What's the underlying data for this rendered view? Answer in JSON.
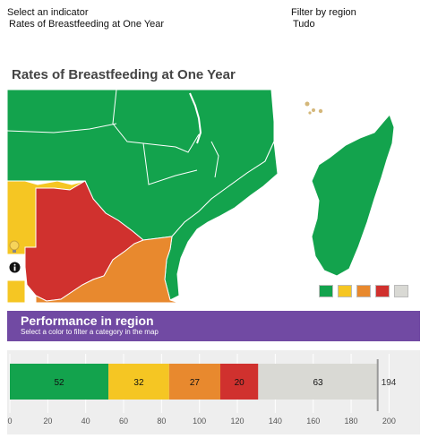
{
  "filters": {
    "indicator": {
      "label": "Select an indicator",
      "value": "Rates of Breastfeeding at One Year"
    },
    "region": {
      "label": "Filter by region",
      "value": "Tudo"
    }
  },
  "map": {
    "title": "Rates of Breastfeeding at One Year",
    "icons": {
      "bulb": "lightbulb-icon",
      "info": "info-icon"
    },
    "colors": {
      "sea": "#ffffff",
      "land_green": "#13a34d",
      "land_yellow": "#f5c623",
      "land_orange": "#e8892e",
      "land_red": "#d0312e",
      "border": "#ffffff"
    },
    "legend": [
      {
        "name": "green",
        "color": "#13a34d"
      },
      {
        "name": "yellow",
        "color": "#f5c623"
      },
      {
        "name": "orange",
        "color": "#e8892e"
      },
      {
        "name": "red",
        "color": "#d0312e"
      },
      {
        "name": "no-data",
        "color": "#d9d9d4"
      }
    ]
  },
  "performance": {
    "title": "Performance in region",
    "subtitle": "Select a color to filter a category in the map",
    "header_color": "#714aa3"
  },
  "chart_data": {
    "type": "bar",
    "orientation": "horizontal",
    "stacked": true,
    "series": [
      {
        "value": 52,
        "color": "#13a34d",
        "label": "52"
      },
      {
        "value": 32,
        "color": "#f5c623",
        "label": "32"
      },
      {
        "value": 27,
        "color": "#e8892e",
        "label": "27"
      },
      {
        "value": 20,
        "color": "#d0312e",
        "label": "20"
      },
      {
        "value": 63,
        "color": "#d9d9d4",
        "label": "63"
      }
    ],
    "total": 194,
    "total_label": "194",
    "xlim": [
      0,
      210
    ],
    "xticks": [
      0,
      20,
      40,
      60,
      80,
      100,
      120,
      140,
      160,
      180,
      200
    ],
    "xtick_labels": [
      "0",
      "20",
      "40",
      "60",
      "80",
      "100",
      "120",
      "140",
      "160",
      "180",
      "200"
    ],
    "grid": true
  }
}
